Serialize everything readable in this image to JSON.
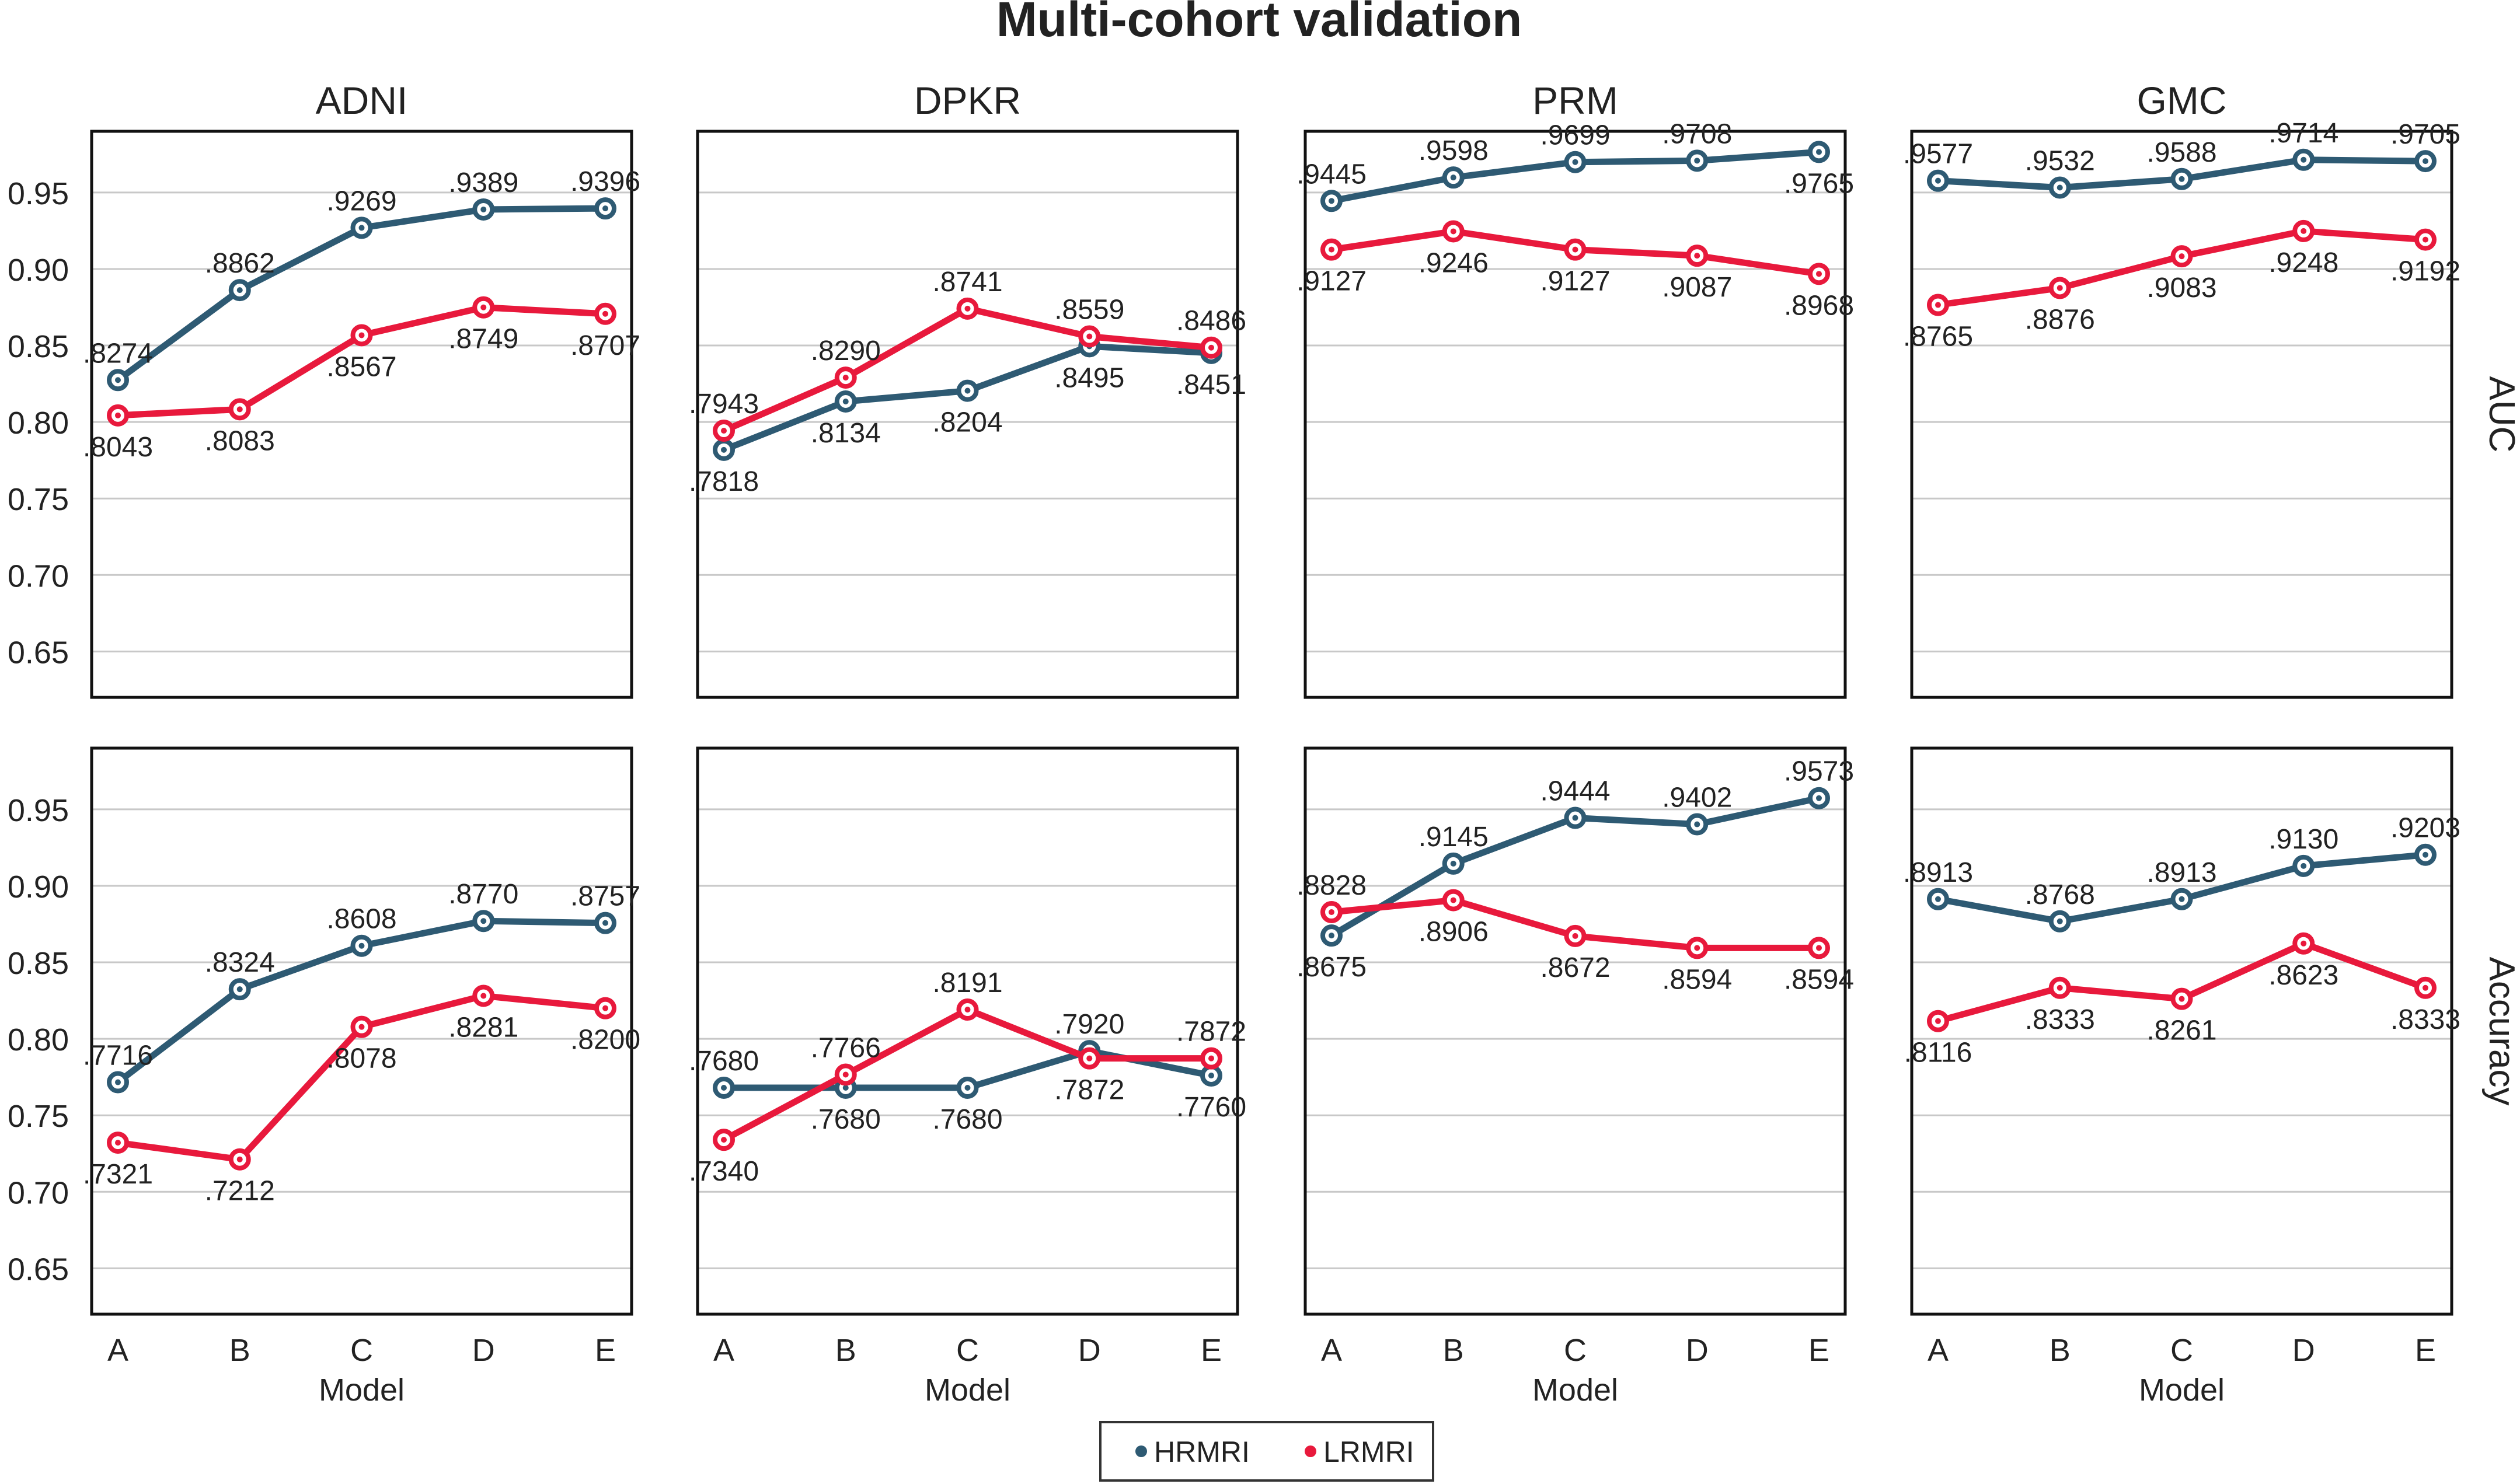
{
  "chart_data": {
    "type": "line",
    "title": "Multi-cohort validation",
    "categories": [
      "A",
      "B",
      "C",
      "D",
      "E"
    ],
    "xlabel": "Model",
    "ylim": [
      0.62,
      0.99
    ],
    "yticks": [
      0.65,
      0.7,
      0.75,
      0.8,
      0.85,
      0.9,
      0.95
    ],
    "ytick_labels": [
      "0.65",
      "0.70",
      "0.75",
      "0.80",
      "0.85",
      "0.90",
      "0.95"
    ],
    "grid": true,
    "columns": [
      "ADNI",
      "DPKR",
      "PRM",
      "GMC"
    ],
    "rows": [
      "AUC",
      "Accuracy"
    ],
    "legend": {
      "position": "bottom-center",
      "entries": [
        {
          "name": "HRMRI",
          "color": "#2e5a73"
        },
        {
          "name": "LRMRI",
          "color": "#e8193c"
        }
      ]
    },
    "panels": [
      {
        "column": "ADNI",
        "row": "AUC",
        "series": [
          {
            "name": "HRMRI",
            "values": [
              0.8274,
              0.8862,
              0.9269,
              0.9389,
              0.9396
            ],
            "labels": [
              ".8274",
              ".8862",
              ".9269",
              ".9389",
              ".9396"
            ],
            "label_pos": [
              "above",
              "above",
              "above",
              "above",
              "above"
            ]
          },
          {
            "name": "LRMRI",
            "values": [
              0.8043,
              0.8083,
              0.8567,
              0.8749,
              0.8707
            ],
            "labels": [
              ".8043",
              ".8083",
              ".8567",
              ".8749",
              ".8707"
            ],
            "label_pos": [
              "below",
              "below",
              "below",
              "below",
              "below"
            ]
          }
        ]
      },
      {
        "column": "DPKR",
        "row": "AUC",
        "series": [
          {
            "name": "HRMRI",
            "values": [
              0.7818,
              0.8134,
              0.8204,
              0.8495,
              0.8451
            ],
            "labels": [
              ".7818",
              ".8134",
              ".8204",
              ".8495",
              ".8451"
            ],
            "label_pos": [
              "below",
              "below",
              "below",
              "below",
              "below"
            ]
          },
          {
            "name": "LRMRI",
            "values": [
              0.7943,
              0.829,
              0.8741,
              0.8559,
              0.8486
            ],
            "labels": [
              ".7943",
              ".8290",
              ".8741",
              ".8559",
              ".8486"
            ],
            "label_pos": [
              "above",
              "above",
              "above",
              "above",
              "above"
            ]
          }
        ]
      },
      {
        "column": "PRM",
        "row": "AUC",
        "series": [
          {
            "name": "HRMRI",
            "values": [
              0.9445,
              0.9598,
              0.9699,
              0.9708,
              0.9765
            ],
            "labels": [
              ".9445",
              ".9598",
              ".9699",
              ".9708",
              ".9765"
            ],
            "label_pos": [
              "above",
              "above",
              "above",
              "above",
              "below"
            ]
          },
          {
            "name": "LRMRI",
            "values": [
              0.9127,
              0.9246,
              0.9127,
              0.9087,
              0.8968
            ],
            "labels": [
              ".9127",
              ".9246",
              ".9127",
              ".9087",
              ".8968"
            ],
            "label_pos": [
              "below",
              "below",
              "below",
              "below",
              "below"
            ]
          }
        ]
      },
      {
        "column": "GMC",
        "row": "AUC",
        "series": [
          {
            "name": "HRMRI",
            "values": [
              0.9577,
              0.9532,
              0.9588,
              0.9714,
              0.9705
            ],
            "labels": [
              ".9577",
              ".9532",
              ".9588",
              ".9714",
              ".9705"
            ],
            "label_pos": [
              "above",
              "above",
              "above",
              "above",
              "above"
            ]
          },
          {
            "name": "LRMRI",
            "values": [
              0.8765,
              0.8876,
              0.9083,
              0.9248,
              0.9192
            ],
            "labels": [
              ".8765",
              ".8876",
              ".9083",
              ".9248",
              ".9192"
            ],
            "label_pos": [
              "below",
              "below",
              "below",
              "below",
              "below"
            ]
          }
        ]
      },
      {
        "column": "ADNI",
        "row": "Accuracy",
        "series": [
          {
            "name": "HRMRI",
            "values": [
              0.7716,
              0.8324,
              0.8608,
              0.877,
              0.8757
            ],
            "labels": [
              ".7716",
              ".8324",
              ".8608",
              ".8770",
              ".8757"
            ],
            "label_pos": [
              "above",
              "above",
              "above",
              "above",
              "above"
            ]
          },
          {
            "name": "LRMRI",
            "values": [
              0.7321,
              0.7212,
              0.8078,
              0.8281,
              0.82
            ],
            "labels": [
              ".7321",
              ".7212",
              ".8078",
              ".8281",
              ".8200"
            ],
            "label_pos": [
              "below",
              "below",
              "below",
              "below",
              "below"
            ]
          }
        ]
      },
      {
        "column": "DPKR",
        "row": "Accuracy",
        "series": [
          {
            "name": "HRMRI",
            "values": [
              0.768,
              0.768,
              0.768,
              0.792,
              0.776
            ],
            "labels": [
              ".7680",
              ".7680",
              ".7680",
              ".7920",
              ".7760"
            ],
            "label_pos": [
              "above",
              "below",
              "below",
              "above",
              "below"
            ]
          },
          {
            "name": "LRMRI",
            "values": [
              0.734,
              0.7766,
              0.8191,
              0.7872,
              0.7872
            ],
            "labels": [
              ".7340",
              ".7766",
              ".8191",
              ".7872",
              ".7872"
            ],
            "label_pos": [
              "below",
              "above",
              "above",
              "below",
              "above"
            ]
          }
        ]
      },
      {
        "column": "PRM",
        "row": "Accuracy",
        "series": [
          {
            "name": "HRMRI",
            "values": [
              0.8675,
              0.9145,
              0.9444,
              0.9402,
              0.9573
            ],
            "labels": [
              ".8675",
              ".9145",
              ".9444",
              ".9402",
              ".9573"
            ],
            "label_pos": [
              "below",
              "above",
              "above",
              "above",
              "above"
            ]
          },
          {
            "name": "LRMRI",
            "values": [
              0.8828,
              0.8906,
              0.8672,
              0.8594,
              0.8594
            ],
            "labels": [
              ".8828",
              ".8906",
              ".8672",
              ".8594",
              ".8594"
            ],
            "label_pos": [
              "above",
              "below",
              "below",
              "below",
              "below"
            ]
          }
        ]
      },
      {
        "column": "GMC",
        "row": "Accuracy",
        "series": [
          {
            "name": "HRMRI",
            "values": [
              0.8913,
              0.8768,
              0.8913,
              0.913,
              0.9203
            ],
            "labels": [
              ".8913",
              ".8768",
              ".8913",
              ".9130",
              ".9203"
            ],
            "label_pos": [
              "above",
              "above",
              "above",
              "above",
              "above"
            ]
          },
          {
            "name": "LRMRI",
            "values": [
              0.8116,
              0.8333,
              0.8261,
              0.8623,
              0.8333
            ],
            "labels": [
              ".8116",
              ".8333",
              ".8261",
              ".8623",
              ".8333"
            ],
            "label_pos": [
              "below",
              "below",
              "below",
              "below",
              "below"
            ]
          }
        ]
      }
    ]
  }
}
